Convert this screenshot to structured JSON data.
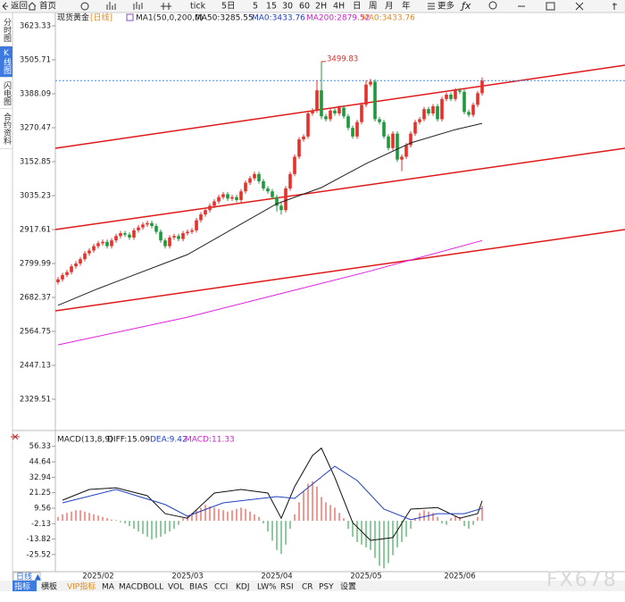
{
  "toolbar": {
    "items": [
      "返回",
      "首页",
      "tick",
      "5日",
      "5",
      "15",
      "30",
      "60",
      "2H",
      "4H",
      "日",
      "周",
      "月",
      "年",
      "更多"
    ]
  },
  "sidebar": {
    "tabs": [
      "分时图",
      "K线图",
      "闪电图",
      "合约资料"
    ]
  },
  "chart_data": [
    {
      "type": "candlestick",
      "title": "现货黄金",
      "period": "[日线]",
      "indicator": "MA1(50,0,200,0)",
      "legend": [
        {
          "text": "MA50:3285.55",
          "color": "#111111"
        },
        {
          "text": "MA0:3433.76",
          "color": "#1f3fbf"
        },
        {
          "text": "MA200:2879.52",
          "color": "#d020d0"
        },
        {
          "text": "MA0:3433.76",
          "color": "#e08a1e"
        }
      ],
      "up_color": "#e8302a",
      "down_color": "#1e9a3c",
      "candles": [
        [
          2735,
          2753,
          2727,
          2745
        ],
        [
          2745,
          2768,
          2737,
          2760
        ],
        [
          2760,
          2778,
          2752,
          2770
        ],
        [
          2770,
          2798,
          2762,
          2790
        ],
        [
          2790,
          2808,
          2782,
          2800
        ],
        [
          2800,
          2823,
          2792,
          2815
        ],
        [
          2815,
          2843,
          2807,
          2835
        ],
        [
          2835,
          2853,
          2827,
          2845
        ],
        [
          2845,
          2868,
          2837,
          2860
        ],
        [
          2860,
          2878,
          2852,
          2870
        ],
        [
          2870,
          2883,
          2862,
          2875
        ],
        [
          2875,
          2883,
          2852,
          2860
        ],
        [
          2860,
          2888,
          2852,
          2880
        ],
        [
          2880,
          2903,
          2872,
          2895
        ],
        [
          2895,
          2913,
          2887,
          2905
        ],
        [
          2905,
          2913,
          2892,
          2900
        ],
        [
          2900,
          2908,
          2882,
          2890
        ],
        [
          2890,
          2923,
          2882,
          2915
        ],
        [
          2915,
          2933,
          2907,
          2925
        ],
        [
          2925,
          2943,
          2917,
          2935
        ],
        [
          2935,
          2948,
          2927,
          2940
        ],
        [
          2940,
          2948,
          2922,
          2930
        ],
        [
          2930,
          2938,
          2902,
          2910
        ],
        [
          2910,
          2918,
          2872,
          2880
        ],
        [
          2880,
          2888,
          2852,
          2860
        ],
        [
          2860,
          2898,
          2852,
          2890
        ],
        [
          2890,
          2903,
          2882,
          2895
        ],
        [
          2895,
          2903,
          2877,
          2885
        ],
        [
          2885,
          2913,
          2877,
          2905
        ],
        [
          2905,
          2918,
          2897,
          2910
        ],
        [
          2910,
          2923,
          2902,
          2915
        ],
        [
          2915,
          2958,
          2907,
          2950
        ],
        [
          2950,
          2978,
          2942,
          2970
        ],
        [
          2970,
          2993,
          2962,
          2985
        ],
        [
          2985,
          3008,
          2977,
          3000
        ],
        [
          3000,
          3023,
          2992,
          3015
        ],
        [
          3015,
          3038,
          3007,
          3030
        ],
        [
          3030,
          3048,
          3022,
          3040
        ],
        [
          3040,
          3048,
          3017,
          3025
        ],
        [
          3025,
          3038,
          3017,
          3030
        ],
        [
          3030,
          3038,
          3012,
          3020
        ],
        [
          3020,
          3058,
          3012,
          3050
        ],
        [
          3050,
          3088,
          3042,
          3080
        ],
        [
          3080,
          3103,
          3072,
          3095
        ],
        [
          3095,
          3118,
          3087,
          3110
        ],
        [
          3110,
          3118,
          3077,
          3085
        ],
        [
          3085,
          3093,
          3052,
          3060
        ],
        [
          3060,
          3068,
          3042,
          3050
        ],
        [
          3050,
          3058,
          3022,
          3030
        ],
        [
          3030,
          3038,
          2980,
          3000
        ],
        [
          3000,
          3010,
          2970,
          2985
        ],
        [
          2985,
          3068,
          2977,
          3060
        ],
        [
          3060,
          3118,
          3052,
          3110
        ],
        [
          3110,
          3178,
          3102,
          3170
        ],
        [
          3170,
          3238,
          3162,
          3230
        ],
        [
          3230,
          3248,
          3222,
          3240
        ],
        [
          3240,
          3328,
          3232,
          3320
        ],
        [
          3320,
          3338,
          3312,
          3330
        ],
        [
          3330,
          3435,
          3322,
          3400
        ],
        [
          3400,
          3499.83,
          3300,
          3310
        ],
        [
          3310,
          3318,
          3292,
          3300
        ],
        [
          3300,
          3338,
          3292,
          3330
        ],
        [
          3330,
          3338,
          3312,
          3320
        ],
        [
          3320,
          3348,
          3312,
          3340
        ],
        [
          3340,
          3348,
          3302,
          3310
        ],
        [
          3310,
          3318,
          3262,
          3270
        ],
        [
          3270,
          3278,
          3232,
          3240
        ],
        [
          3240,
          3298,
          3232,
          3290
        ],
        [
          3290,
          3358,
          3282,
          3350
        ],
        [
          3350,
          3435,
          3342,
          3420
        ],
        [
          3420,
          3440,
          3412,
          3430
        ],
        [
          3430,
          3438,
          3292,
          3300
        ],
        [
          3300,
          3308,
          3282,
          3290
        ],
        [
          3290,
          3298,
          3232,
          3240
        ],
        [
          3240,
          3248,
          3192,
          3200
        ],
        [
          3200,
          3258,
          3192,
          3250
        ],
        [
          3250,
          3258,
          3152,
          3160
        ],
        [
          3160,
          3178,
          3120,
          3170
        ],
        [
          3170,
          3218,
          3162,
          3210
        ],
        [
          3210,
          3258,
          3202,
          3250
        ],
        [
          3250,
          3298,
          3242,
          3290
        ],
        [
          3290,
          3308,
          3282,
          3300
        ],
        [
          3300,
          3343,
          3292,
          3335
        ],
        [
          3335,
          3343,
          3312,
          3320
        ],
        [
          3320,
          3353,
          3312,
          3345
        ],
        [
          3345,
          3353,
          3292,
          3300
        ],
        [
          3300,
          3378,
          3292,
          3370
        ],
        [
          3370,
          3393,
          3362,
          3385
        ],
        [
          3385,
          3393,
          3362,
          3370
        ],
        [
          3370,
          3408,
          3362,
          3400
        ],
        [
          3400,
          3408,
          3387,
          3395
        ],
        [
          3395,
          3403,
          3317,
          3325
        ],
        [
          3325,
          3333,
          3307,
          3315
        ],
        [
          3315,
          3358,
          3307,
          3350
        ],
        [
          3350,
          3398,
          3342,
          3390
        ],
        [
          3390,
          3445,
          3382,
          3433.76
        ]
      ],
      "lines": [
        {
          "color": "#222222",
          "x": [
            0,
            9,
            29,
            49,
            59,
            69,
            79,
            89,
            95
          ],
          "values": [
            2655,
            2713,
            2831,
            3007,
            3063,
            3146,
            3218,
            3264,
            3285.55
          ]
        },
        {
          "color": "#e020e0",
          "x": [
            0,
            29,
            49,
            69,
            95
          ],
          "values": [
            2518,
            2614,
            2692,
            2770,
            2879.52
          ]
        }
      ],
      "price_line": {
        "value": 3433.76,
        "color": "#3a8ee8"
      },
      "high_label_color": "#d0302a",
      "xlim": [
        -0.6,
        127
      ],
      "ylim": [
        2227.37,
        3669.76
      ],
      "yticks": [
        3623.33,
        3505.71,
        3388.09,
        3270.47,
        3152.85,
        3035.23,
        2917.61,
        2799.99,
        2682.37,
        2564.75,
        2447.13,
        2329.51
      ]
    },
    {
      "type": "macd",
      "title": "MACD(13,8,9)",
      "legend": [
        {
          "text": "DIFF:15.09",
          "color": "#111111"
        },
        {
          "text": "DEA:9.42",
          "color": "#1f3fbf"
        },
        {
          "text": "MACD:11.33",
          "color": "#d020d0"
        }
      ],
      "up_color": "#e8302a",
      "down_color": "#1e9a3c",
      "histogram": [
        3,
        5,
        6,
        7,
        8,
        8,
        7,
        6,
        5,
        4,
        3,
        2,
        1,
        0.5,
        -1,
        -2,
        -4,
        -6,
        -8,
        -10,
        -12,
        -14,
        -13,
        -12,
        -10,
        -8,
        -6,
        -3,
        2,
        4,
        6,
        8,
        10,
        12,
        11,
        10,
        9,
        8,
        7,
        8,
        9,
        10,
        9,
        7,
        5,
        3,
        -2,
        -8,
        -15,
        -22,
        -25,
        -18,
        -6,
        5,
        14,
        22,
        28,
        30,
        26,
        18,
        14,
        12,
        10,
        6,
        2,
        -6,
        -12,
        -16,
        -18,
        -20,
        -22,
        -28,
        -34,
        -36,
        -32,
        -26,
        -20,
        -16,
        -12,
        -6,
        2,
        6,
        8,
        7,
        6,
        3,
        -2,
        -3,
        2,
        4,
        3,
        -4,
        -6,
        -3,
        3,
        11.33
      ],
      "series": [
        {
          "color": "#111111",
          "x": [
            1,
            7,
            13,
            20,
            24,
            29,
            35,
            41,
            47,
            50,
            53,
            57,
            59,
            62,
            66,
            70,
            75,
            79,
            85,
            90,
            94,
            95
          ],
          "values": [
            15.6,
            23.7,
            25,
            19,
            5.4,
            2,
            21,
            23.7,
            21,
            2,
            25.8,
            49.4,
            55,
            32.8,
            -1.3,
            -14.8,
            -12.7,
            8.9,
            10,
            2,
            5.4,
            15.09
          ]
        },
        {
          "color": "#2040c0",
          "x": [
            1,
            13,
            24,
            29,
            37,
            49,
            53,
            62,
            67,
            73,
            79,
            85,
            91,
            95
          ],
          "values": [
            13.6,
            23.7,
            12.3,
            3.5,
            13.6,
            18.3,
            17,
            41.3,
            30.5,
            8.9,
            0.8,
            5.4,
            5.4,
            9.42
          ]
        }
      ],
      "xlim": [
        -0.6,
        127
      ],
      "ylim": [
        -37.06,
        62.9
      ],
      "yticks": [
        56.33,
        44.64,
        32.94,
        21.25,
        9.56,
        -2.13,
        -13.82,
        -25.52
      ],
      "xticks": [
        {
          "value": 9,
          "label": "2025/02"
        },
        {
          "value": 29,
          "label": "2025/03"
        },
        {
          "value": 49,
          "label": "2025/04"
        },
        {
          "value": 69,
          "label": "2025/05"
        },
        {
          "value": 90,
          "label": "2025/06"
        }
      ]
    }
  ],
  "footer": {
    "period": "日线 ▲",
    "tabs": [
      "指标",
      "横板",
      "VIP指标",
      "MA",
      "MACD",
      "BOLL",
      "VOL",
      "BIAS",
      "CCI",
      "KDJ",
      "LW%",
      "RSI",
      "CR",
      "PSY",
      "设置"
    ],
    "watermark": "FX678"
  }
}
